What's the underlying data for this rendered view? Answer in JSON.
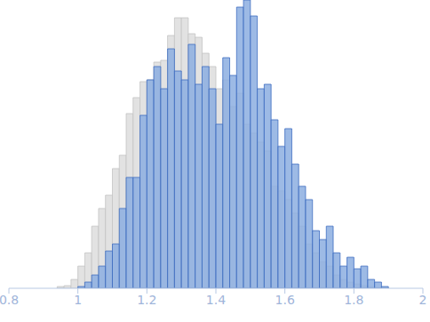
{
  "chart_data": {
    "type": "histogram",
    "bins": [
      0.94,
      0.96,
      0.98,
      1.0,
      1.02,
      1.04,
      1.06,
      1.08,
      1.1,
      1.12,
      1.14,
      1.16,
      1.18,
      1.2,
      1.22,
      1.24,
      1.26,
      1.28,
      1.3,
      1.32,
      1.34,
      1.36,
      1.38,
      1.4,
      1.42,
      1.44,
      1.46,
      1.48,
      1.5,
      1.52,
      1.54,
      1.56,
      1.58,
      1.6,
      1.62,
      1.64,
      1.66,
      1.68,
      1.7,
      1.72,
      1.74,
      1.76,
      1.78,
      1.8,
      1.82,
      1.84,
      1.86,
      1.88,
      1.9
    ],
    "series": [
      {
        "color": "#e2e2e2",
        "values": [
          2,
          3,
          10,
          25,
          40,
          70,
          90,
          105,
          135,
          150,
          197,
          215,
          233,
          235,
          255,
          257,
          285,
          305,
          305,
          287,
          283,
          265,
          250,
          225,
          235,
          205,
          220,
          185,
          175,
          165,
          155,
          115,
          110,
          100,
          85,
          70,
          50,
          40,
          30,
          25,
          15,
          10,
          7,
          5,
          3,
          2,
          1,
          1
        ]
      },
      {
        "color": "#8caee0",
        "values": [
          0,
          0,
          0,
          2,
          7,
          15,
          25,
          42,
          50,
          90,
          125,
          125,
          195,
          235,
          250,
          225,
          270,
          245,
          235,
          275,
          230,
          250,
          225,
          185,
          260,
          240,
          317,
          325,
          307,
          225,
          230,
          190,
          160,
          180,
          140,
          115,
          100,
          65,
          55,
          70,
          40,
          25,
          35,
          22,
          25,
          10,
          7,
          2
        ]
      }
    ],
    "xlim": [
      0.8,
      2
    ],
    "xticks": [
      0.8,
      1,
      1.2,
      1.4,
      1.6,
      1.8,
      2
    ],
    "ylim": [
      0,
      325
    ],
    "tick_labels": "x",
    "grid": false
  }
}
